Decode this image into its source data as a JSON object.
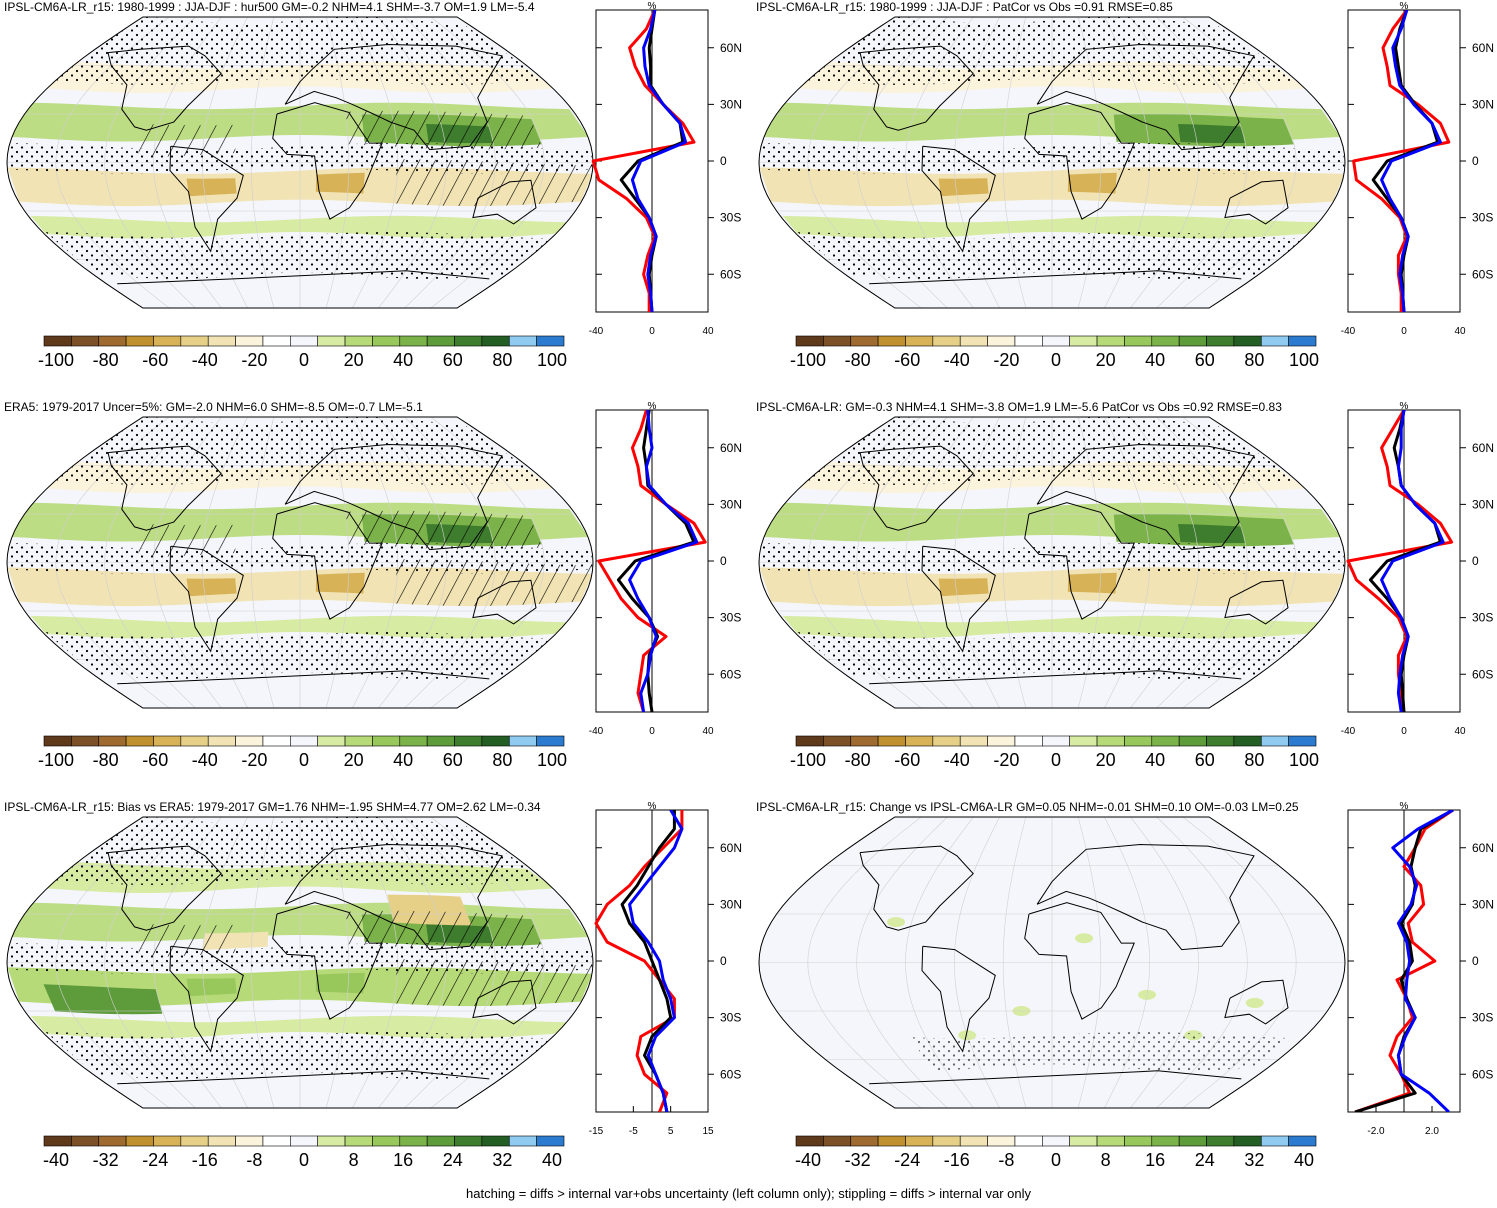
{
  "footer": "hatching = diffs > internal var+obs uncertainty (left column only); stippling = diffs > internal var only",
  "lat_labels": [
    "60N",
    "30N",
    "0",
    "30S",
    "60S"
  ],
  "profile_unit": "%",
  "colors": {
    "palette": [
      "#5e3a1b",
      "#7d5128",
      "#9e6a2f",
      "#c0912e",
      "#d8b257",
      "#e6cf86",
      "#f1e3b4",
      "#fbf3dc",
      "#ffffff",
      "#f4f6fb",
      "#d8eba2",
      "#b7da78",
      "#98c75c",
      "#7bb34a",
      "#5e9b3b",
      "#3f7d2e",
      "#245e24",
      "#8fcaf0",
      "#2b7cd1"
    ],
    "obs_profile": "#ff0000",
    "model_profile": "#000000",
    "ref_profile": "#0000ff"
  },
  "panels": [
    {
      "id": "top-left",
      "title": "IPSL-CM6A-LR_r15: 1980-1999 : JJA-DJF : hur500 GM=-0.2 NHM=4.1 SHM=-3.7 OM=1.9 LM=-5.4",
      "hatching": true,
      "colorbar_labels": [
        "-100",
        "-80",
        "-60",
        "-40",
        "-20",
        "0",
        "20",
        "40",
        "60",
        "80",
        "100"
      ],
      "chart_data": {
        "type": "line",
        "title": "IPSL-CM6A-LR_r15: 1980-1999 : JJA-DJF : hur500 GM=-0.2 NHM=4.1 SHM=-3.7 OM=1.9 LM=-5.4",
        "xlabel": "%",
        "ylabel": "",
        "xlim": [
          -40,
          40
        ],
        "xticks": [
          "-40",
          "0",
          "40"
        ],
        "ylim": [
          -80,
          80
        ],
        "yticks": [
          60,
          30,
          0,
          -30,
          -60
        ],
        "grid": false,
        "y": [
          80,
          70,
          60,
          50,
          40,
          30,
          20,
          10,
          0,
          -10,
          -20,
          -30,
          -40,
          -50,
          -60,
          -70,
          -80
        ],
        "series": [
          {
            "color": "red",
            "values": [
              2,
              -4,
              -16,
              -12,
              -5,
              8,
              22,
              30,
              -42,
              -38,
              -18,
              -4,
              2,
              -3,
              -6,
              -2,
              -2
            ]
          },
          {
            "color": "black",
            "values": [
              2,
              0,
              -2,
              -1,
              -1,
              8,
              20,
              22,
              -10,
              -22,
              -12,
              -2,
              3,
              0,
              -2,
              -1,
              0
            ]
          },
          {
            "color": "blue",
            "values": [
              2,
              -1,
              -6,
              -5,
              -2,
              8,
              20,
              24,
              -8,
              -14,
              -10,
              -2,
              3,
              -1,
              -3,
              -1,
              0
            ]
          }
        ]
      }
    },
    {
      "id": "top-right",
      "title": "IPSL-CM6A-LR_r15: 1980-1999 : JJA-DJF : PatCor vs Obs =0.91 RMSE=0.85",
      "hatching": false,
      "colorbar_labels": [
        "-100",
        "-80",
        "-60",
        "-40",
        "-20",
        "0",
        "20",
        "40",
        "60",
        "80",
        "100"
      ],
      "chart_data": {
        "type": "line",
        "title": "IPSL-CM6A-LR_r15: 1980-1999 : JJA-DJF : PatCor vs Obs =0.91 RMSE=0.85",
        "xlabel": "%",
        "ylabel": "",
        "xlim": [
          -40,
          40
        ],
        "xticks": [
          "-40",
          "0",
          "40"
        ],
        "ylim": [
          -80,
          80
        ],
        "yticks": [
          60,
          30,
          0,
          -30,
          -60
        ],
        "grid": false,
        "y": [
          80,
          70,
          60,
          50,
          40,
          30,
          20,
          10,
          0,
          -10,
          -20,
          -30,
          -40,
          -50,
          -60,
          -70,
          -80
        ],
        "series": [
          {
            "color": "red",
            "values": [
              2,
              -8,
              -15,
              -12,
              -10,
              10,
              26,
              32,
              -36,
              -34,
              -16,
              -3,
              2,
              -4,
              -4,
              -2,
              -2
            ]
          },
          {
            "color": "black",
            "values": [
              2,
              -3,
              -6,
              -4,
              -2,
              8,
              20,
              24,
              -12,
              -22,
              -12,
              -2,
              3,
              0,
              -2,
              -1,
              0
            ]
          },
          {
            "color": "blue",
            "values": [
              2,
              -2,
              -8,
              -6,
              -3,
              7,
              20,
              26,
              -9,
              -16,
              -10,
              -2,
              3,
              -1,
              -3,
              -1,
              0
            ]
          }
        ]
      }
    },
    {
      "id": "middle-left",
      "title": "ERA5: 1979-2017 Uncer=5%: GM=-2.0 NHM=6.0 SHM=-8.5 OM=-0.7 LM=-5.1",
      "hatching": true,
      "colorbar_labels": [
        "-100",
        "-80",
        "-60",
        "-40",
        "-20",
        "0",
        "20",
        "40",
        "60",
        "80",
        "100"
      ],
      "chart_data": {
        "type": "line",
        "title": "ERA5: 1979-2017 Uncer=5%: GM=-2.0 NHM=6.0 SHM=-8.5 OM=-0.7 LM=-5.1",
        "xlabel": "%",
        "ylabel": "",
        "xlim": [
          -40,
          40
        ],
        "xticks": [
          "-40",
          "0",
          "40"
        ],
        "ylim": [
          -80,
          80
        ],
        "yticks": [
          60,
          30,
          0,
          -30,
          -60
        ],
        "grid": false,
        "y": [
          80,
          70,
          60,
          50,
          40,
          30,
          20,
          10,
          0,
          -10,
          -20,
          -30,
          -40,
          -50,
          -60,
          -70,
          -80
        ],
        "series": [
          {
            "color": "red",
            "values": [
              -4,
              -8,
              -14,
              -10,
              -8,
              10,
              30,
              38,
              -38,
              -30,
              -22,
              -10,
              10,
              -6,
              -8,
              -10,
              -6
            ]
          },
          {
            "color": "black",
            "values": [
              -2,
              -4,
              -6,
              -4,
              -3,
              10,
              24,
              30,
              -12,
              -24,
              -14,
              -2,
              4,
              -2,
              -3,
              -2,
              0
            ]
          },
          {
            "color": "blue",
            "values": [
              -3,
              -2,
              0,
              -4,
              -2,
              10,
              26,
              32,
              -8,
              -16,
              -10,
              -2,
              3,
              -1,
              -3,
              -8,
              -6
            ]
          }
        ]
      }
    },
    {
      "id": "middle-right",
      "title": "IPSL-CM6A-LR: GM=-0.3 NHM=4.1 SHM=-3.8 OM=1.9 LM=-5.6 PatCor vs Obs =0.92 RMSE=0.83",
      "hatching": false,
      "colorbar_labels": [
        "-100",
        "-80",
        "-60",
        "-40",
        "-20",
        "0",
        "20",
        "40",
        "60",
        "80",
        "100"
      ],
      "chart_data": {
        "type": "line",
        "title": "IPSL-CM6A-LR: GM=-0.3 NHM=4.1 SHM=-3.8 OM=1.9 LM=-5.6 PatCor vs Obs =0.92 RMSE=0.83",
        "xlabel": "%",
        "ylabel": "",
        "xlim": [
          -40,
          40
        ],
        "xticks": [
          "-40",
          "0",
          "40"
        ],
        "ylim": [
          -80,
          80
        ],
        "yticks": [
          60,
          30,
          0,
          -30,
          -60
        ],
        "grid": false,
        "y": [
          80,
          70,
          60,
          50,
          40,
          30,
          20,
          10,
          0,
          -10,
          -20,
          -30,
          -40,
          -50,
          -60,
          -70,
          -80
        ],
        "series": [
          {
            "color": "red",
            "values": [
              0,
              -8,
              -16,
              -12,
              -10,
              10,
              26,
              34,
              -40,
              -34,
              -18,
              -4,
              2,
              -4,
              -4,
              -2,
              -2
            ]
          },
          {
            "color": "black",
            "values": [
              0,
              -3,
              -7,
              -4,
              -2,
              8,
              22,
              26,
              -12,
              -24,
              -12,
              -2,
              3,
              0,
              -2,
              -1,
              0
            ]
          },
          {
            "color": "blue",
            "values": [
              0,
              -2,
              -2,
              -4,
              -2,
              8,
              22,
              28,
              -8,
              -16,
              -10,
              -2,
              3,
              -1,
              -3,
              -4,
              -2
            ]
          }
        ]
      }
    },
    {
      "id": "bottom-left",
      "title": "IPSL-CM6A-LR_r15: Bias vs ERA5: 1979-2017 GM=1.76 NHM=-1.95 SHM=4.77 OM=2.62 LM=-0.34",
      "hatching": true,
      "colorbar_labels": [
        "-40",
        "-32",
        "-24",
        "-16",
        "-8",
        "0",
        "8",
        "16",
        "24",
        "32",
        "40"
      ],
      "chart_data": {
        "type": "line",
        "title": "IPSL-CM6A-LR_r15: Bias vs ERA5: 1979-2017 GM=1.76 NHM=-1.95 SHM=4.77 OM=2.62 LM=-0.34",
        "xlabel": "%",
        "ylabel": "",
        "xlim": [
          -15,
          15
        ],
        "xticks": [
          "-15",
          "-5",
          "5",
          "15"
        ],
        "ylim": [
          -80,
          80
        ],
        "yticks": [
          60,
          30,
          0,
          -30,
          -60
        ],
        "grid": false,
        "y": [
          80,
          70,
          60,
          50,
          40,
          30,
          20,
          10,
          0,
          -10,
          -20,
          -30,
          -40,
          -50,
          -60,
          -70,
          -80
        ],
        "series": [
          {
            "color": "red",
            "values": [
              8,
              8,
              3,
              -2,
              -6,
              -12,
              -15,
              -12,
              -2,
              2,
              6,
              6,
              -3,
              -4,
              -2,
              4,
              2
            ]
          },
          {
            "color": "black",
            "values": [
              6,
              6,
              2,
              -1,
              -4,
              -8,
              -6,
              -2,
              0,
              2,
              4,
              5,
              0,
              -2,
              1,
              3,
              4
            ]
          },
          {
            "color": "blue",
            "values": [
              5,
              8,
              6,
              2,
              -2,
              -6,
              -5,
              -1,
              2,
              3,
              5,
              6,
              1,
              -1,
              1,
              3,
              4
            ]
          }
        ]
      }
    },
    {
      "id": "bottom-right",
      "title": "IPSL-CM6A-LR_r15: Change vs IPSL-CM6A-LR GM=0.05 NHM=-0.01 SHM=0.10 OM=-0.03 LM=0.25",
      "hatching": false,
      "colorbar_labels": [
        "-40",
        "-32",
        "-24",
        "-16",
        "-8",
        "0",
        "8",
        "16",
        "24",
        "32",
        "40"
      ],
      "chart_data": {
        "type": "line",
        "title": "IPSL-CM6A-LR_r15: Change vs IPSL-CM6A-LR GM=0.05 NHM=-0.01 SHM=0.10 OM=-0.03 LM=0.25",
        "xlabel": "%",
        "ylabel": "",
        "xlim": [
          -4,
          4
        ],
        "xticks": [
          "-2.0",
          "2.0"
        ],
        "ylim": [
          -80,
          80
        ],
        "yticks": [
          60,
          30,
          0,
          -30,
          -60
        ],
        "grid": false,
        "y": [
          80,
          70,
          60,
          50,
          40,
          30,
          20,
          10,
          0,
          -10,
          -20,
          -30,
          -40,
          -50,
          -60,
          -70,
          -80
        ],
        "series": [
          {
            "color": "red",
            "values": [
              3.5,
              1.5,
              0.8,
              0.0,
              1.2,
              1.4,
              0.3,
              0.6,
              2.2,
              -0.5,
              0.2,
              0.6,
              -0.5,
              -1.0,
              -0.2,
              0.4,
              -3.5
            ]
          },
          {
            "color": "black",
            "values": [
              3.5,
              1.2,
              0.8,
              0.5,
              0.8,
              0.6,
              -0.2,
              0.4,
              0.6,
              -0.2,
              0.2,
              0.8,
              0.0,
              -0.4,
              -0.2,
              0.8,
              -3.5
            ]
          },
          {
            "color": "blue",
            "values": [
              3.5,
              1.0,
              -0.8,
              0.4,
              0.9,
              0.5,
              -0.4,
              0.2,
              0.4,
              0.2,
              0.1,
              0.8,
              0.1,
              -0.4,
              -0.2,
              1.8,
              3.2
            ]
          }
        ]
      }
    }
  ]
}
